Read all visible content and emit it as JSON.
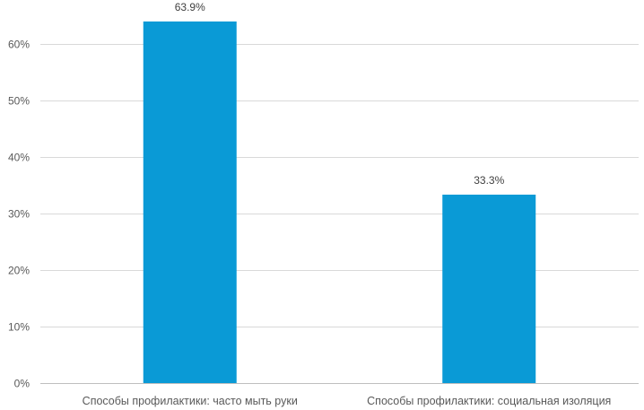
{
  "chart_data": {
    "type": "bar",
    "title": "",
    "xlabel": "",
    "ylabel": "",
    "categories": [
      "Способы профилактики: часто мыть руки",
      "Способы профилактики: социальная изоляция"
    ],
    "values": [
      63.9,
      33.3
    ],
    "data_labels": [
      "63.9%",
      "33.3%"
    ],
    "ylim": [
      0,
      65
    ],
    "y_ticks": [
      0,
      10,
      20,
      30,
      40,
      50,
      60
    ],
    "y_tick_labels": [
      "0%",
      "10%",
      "20%",
      "30%",
      "40%",
      "50%",
      "60%"
    ],
    "grid": true,
    "legend": "none",
    "bar_color": "#0a9ad6"
  }
}
